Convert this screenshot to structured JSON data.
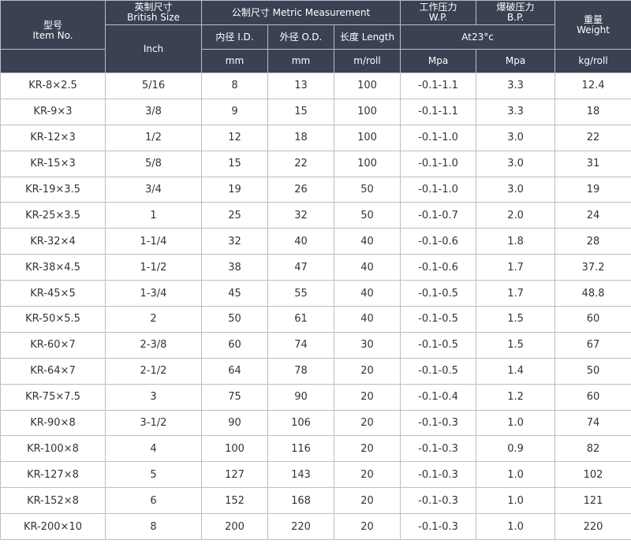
{
  "header": {
    "item": {
      "cn": "型号",
      "en": "Item No."
    },
    "british": {
      "cn": "英制尺寸",
      "en": "British Size",
      "unit": "Inch"
    },
    "metric": {
      "label": "公制尺寸  Metric Measurement"
    },
    "id": {
      "label": "内径  I.D.",
      "unit": "mm"
    },
    "od": {
      "label": "外径  O.D.",
      "unit": "mm"
    },
    "length": {
      "label": "长度 Length",
      "unit": "m/roll"
    },
    "wp": {
      "cn": "工作压力",
      "en": "W.P.",
      "unit": "Mpa"
    },
    "bp": {
      "cn": "爆破压力",
      "en": "B.P.",
      "unit": "Mpa"
    },
    "at_temp": "At23°c",
    "weight": {
      "cn": "重量",
      "en": "Weight",
      "unit": "kg/roll"
    }
  },
  "rows": [
    [
      "KR-8×2.5",
      "5/16",
      "8",
      "13",
      "100",
      "-0.1-1.1",
      "3.3",
      "12.4"
    ],
    [
      "KR-9×3",
      "3/8",
      "9",
      "15",
      "100",
      "-0.1-1.1",
      "3.3",
      "18"
    ],
    [
      "KR-12×3",
      "1/2",
      "12",
      "18",
      "100",
      "-0.1-1.0",
      "3.0",
      "22"
    ],
    [
      "KR-15×3",
      "5/8",
      "15",
      "22",
      "100",
      "-0.1-1.0",
      "3.0",
      "31"
    ],
    [
      "KR-19×3.5",
      "3/4",
      "19",
      "26",
      "50",
      "-0.1-1.0",
      "3.0",
      "19"
    ],
    [
      "KR-25×3.5",
      "1",
      "25",
      "32",
      "50",
      "-0.1-0.7",
      "2.0",
      "24"
    ],
    [
      "KR-32×4",
      "1-1/4",
      "32",
      "40",
      "40",
      "-0.1-0.6",
      "1.8",
      "28"
    ],
    [
      "KR-38×4.5",
      "1-1/2",
      "38",
      "47",
      "40",
      "-0.1-0.6",
      "1.7",
      "37.2"
    ],
    [
      "KR-45×5",
      "1-3/4",
      "45",
      "55",
      "40",
      "-0.1-0.5",
      "1.7",
      "48.8"
    ],
    [
      "KR-50×5.5",
      "2",
      "50",
      "61",
      "40",
      "-0.1-0.5",
      "1.5",
      "60"
    ],
    [
      "KR-60×7",
      "2-3/8",
      "60",
      "74",
      "30",
      "-0.1-0.5",
      "1.5",
      "67"
    ],
    [
      "KR-64×7",
      "2-1/2",
      "64",
      "78",
      "20",
      "-0.1-0.5",
      "1.4",
      "50"
    ],
    [
      "KR-75×7.5",
      "3",
      "75",
      "90",
      "20",
      "-0.1-0.4",
      "1.2",
      "60"
    ],
    [
      "KR-90×8",
      "3-1/2",
      "90",
      "106",
      "20",
      "-0.1-0.3",
      "1.0",
      "74"
    ],
    [
      "KR-100×8",
      "4",
      "100",
      "116",
      "20",
      "-0.1-0.3",
      "0.9",
      "82"
    ],
    [
      "KR-127×8",
      "5",
      "127",
      "143",
      "20",
      "-0.1-0.3",
      "1.0",
      "102"
    ],
    [
      "KR-152×8",
      "6",
      "152",
      "168",
      "20",
      "-0.1-0.3",
      "1.0",
      "121"
    ],
    [
      "KR-200×10",
      "8",
      "200",
      "220",
      "20",
      "-0.1-0.3",
      "1.0",
      "220"
    ]
  ]
}
